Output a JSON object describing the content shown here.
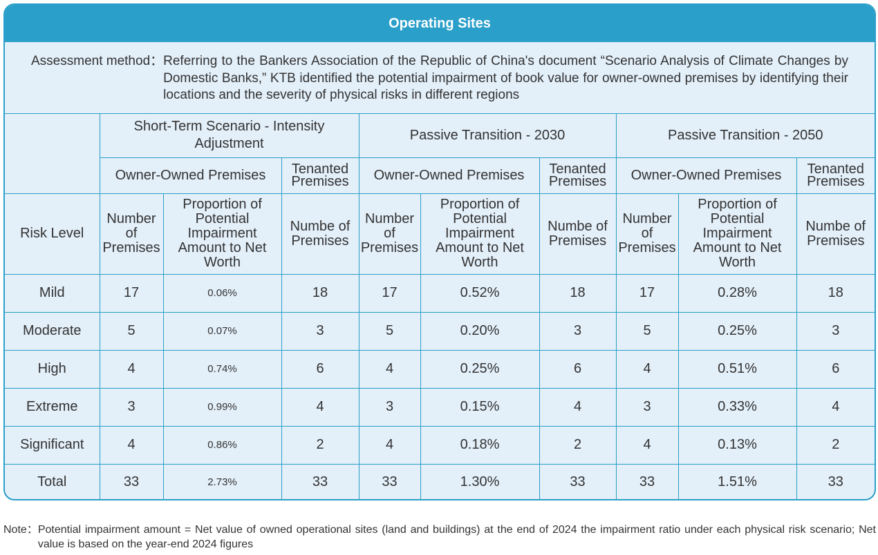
{
  "title": "Operating Sites",
  "method": {
    "label": "Assessment method：",
    "text": "Referring to the Bankers Association of the Republic of China's document “Scenario Analysis of Climate Changes by Domestic Banks,” KTB identified the potential impairment of book value for owner-owned premises by identifying their locations and the severity of physical risks in different regions"
  },
  "headers": {
    "scenarios": [
      "Short-Term Scenario - Intensity Adjustment",
      "Passive Transition - 2030",
      "Passive Transition - 2050"
    ],
    "owner": "Owner-Owned Premises",
    "tenanted": "Tenanted Premises",
    "risk_level": "Risk Level",
    "number": "Number of Premises",
    "proportion": "Proportion of Potential Impairment Amount to Net Worth",
    "numbe": "Numbe of Premises"
  },
  "rows": [
    {
      "level": "Mild",
      "v": [
        "17",
        "0.06%",
        "18",
        "17",
        "0.52%",
        "18",
        "17",
        "0.28%",
        "18"
      ]
    },
    {
      "level": "Moderate",
      "v": [
        "5",
        "0.07%",
        "3",
        "5",
        "0.20%",
        "3",
        "5",
        "0.25%",
        "3"
      ]
    },
    {
      "level": "High",
      "v": [
        "4",
        "0.74%",
        "6",
        "4",
        "0.25%",
        "6",
        "4",
        "0.51%",
        "6"
      ]
    },
    {
      "level": "Extreme",
      "v": [
        "3",
        "0.99%",
        "4",
        "3",
        "0.15%",
        "4",
        "3",
        "0.33%",
        "4"
      ]
    },
    {
      "level": "Significant",
      "v": [
        "4",
        "0.86%",
        "2",
        "4",
        "0.18%",
        "2",
        "4",
        "0.13%",
        "2"
      ]
    },
    {
      "level": "Total",
      "v": [
        "33",
        "2.73%",
        "33",
        "33",
        "1.30%",
        "33",
        "33",
        "1.51%",
        "33"
      ]
    }
  ],
  "note": {
    "label": "Note：",
    "text": "Potential impairment amount = Net value of owned operational sites (land and buildings) at the end of 2024 the impairment ratio under each physical risk scenario; Net value is based on the year-end 2024 figures"
  },
  "colors": {
    "accent": "#2a9fc9",
    "panel_bg": "#e3eff9",
    "text": "#333333"
  }
}
